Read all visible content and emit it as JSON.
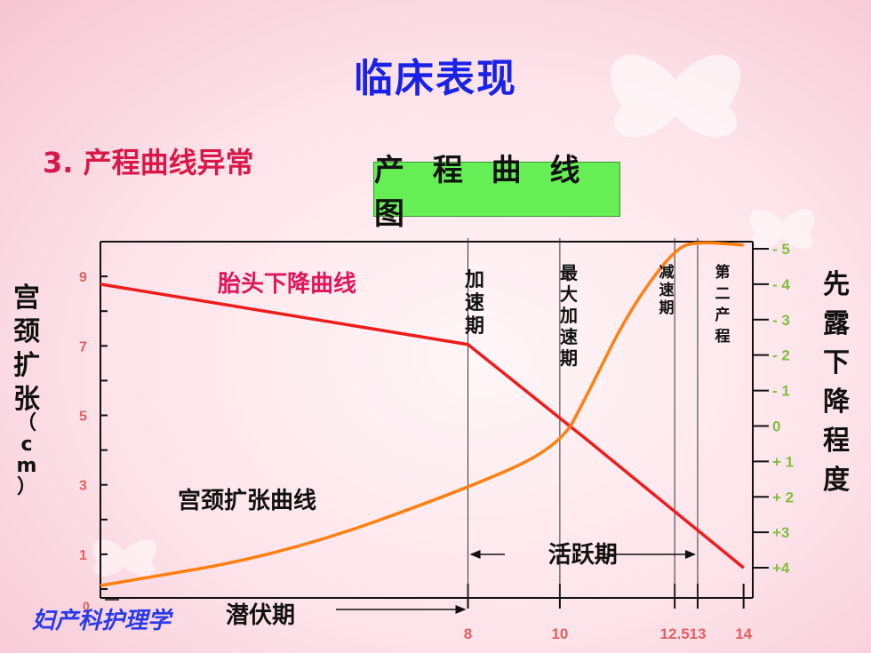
{
  "slide": {
    "title": "临床表现",
    "subtitle": "3. 产程曲线异常",
    "chart_heading": "产 程 曲 线 图",
    "watermark": "妇产科护理学"
  },
  "colors": {
    "title": "#1a22e8",
    "subtitle": "#d8184a",
    "descent_curve": "#ee1c1c",
    "dilation_curve": "#ff7f10",
    "left_ticks": "#e06060",
    "right_ticks": "#7fbf3f",
    "heading_bg": "#66ee55"
  },
  "chart_data": {
    "type": "line",
    "title": "产 程 曲 线 图",
    "xlabel": "",
    "ylabel_left": "宫颈扩张（cm）",
    "ylabel_right": "先露下降程度",
    "xlim": [
      0,
      14.2
    ],
    "ylim_left": [
      0,
      10
    ],
    "ylim_right": [
      -5.2,
      4.6
    ],
    "x_tick_labels": [
      {
        "value": 0,
        "label": "0"
      },
      {
        "value": 8,
        "label": "8"
      },
      {
        "value": 10,
        "label": "10"
      },
      {
        "value": 12.5,
        "label": "12.5"
      },
      {
        "value": 13,
        "label": "13"
      },
      {
        "value": 14,
        "label": "14"
      }
    ],
    "y_left_tick_labels": [
      {
        "value": 1,
        "label": "1"
      },
      {
        "value": 3,
        "label": "3"
      },
      {
        "value": 5,
        "label": "5"
      },
      {
        "value": 7,
        "label": "7"
      },
      {
        "value": 9,
        "label": "9"
      }
    ],
    "y_right_tick_labels": [
      {
        "value": -5,
        "label": "- 5"
      },
      {
        "value": -4,
        "label": "- 4"
      },
      {
        "value": -3,
        "label": "- 3"
      },
      {
        "value": -2,
        "label": "- 2"
      },
      {
        "value": -1,
        "label": "- 1"
      },
      {
        "value": 0,
        "label": "0"
      },
      {
        "value": 1,
        "label": "+ 1"
      },
      {
        "value": 2,
        "label": "+ 2"
      },
      {
        "value": 3,
        "label": "+3"
      },
      {
        "value": 4,
        "label": "+4"
      }
    ],
    "series": [
      {
        "name": "胎头下降曲线",
        "axis": "right",
        "x": [
          0,
          8,
          10.6,
          14
        ],
        "y": [
          -4,
          -2.3,
          0.4,
          4
        ]
      },
      {
        "name": "宫颈扩张曲线",
        "axis": "left",
        "x": [
          0,
          4,
          8,
          10,
          10.6,
          11.5,
          12.5,
          13,
          14
        ],
        "y": [
          0.1,
          1,
          2.9,
          4.1,
          5.6,
          8,
          9.8,
          10,
          9.9
        ]
      }
    ],
    "phase_lines": [
      8,
      10,
      12.5,
      13
    ],
    "phase_labels": [
      {
        "label": "加速期",
        "from": 8,
        "to": 10
      },
      {
        "label": "最大加速期",
        "from": 10,
        "to": 12.5
      },
      {
        "label": "减速期",
        "from": 12.5,
        "to": 13
      },
      {
        "label": "第二产程",
        "from": 13,
        "to": 14
      }
    ],
    "period_labels": [
      {
        "label": "潜伏期",
        "from": 0,
        "to": 8
      },
      {
        "label": "活跃期",
        "from": 8,
        "to": 13
      }
    ],
    "grid": false,
    "legend": "none"
  }
}
